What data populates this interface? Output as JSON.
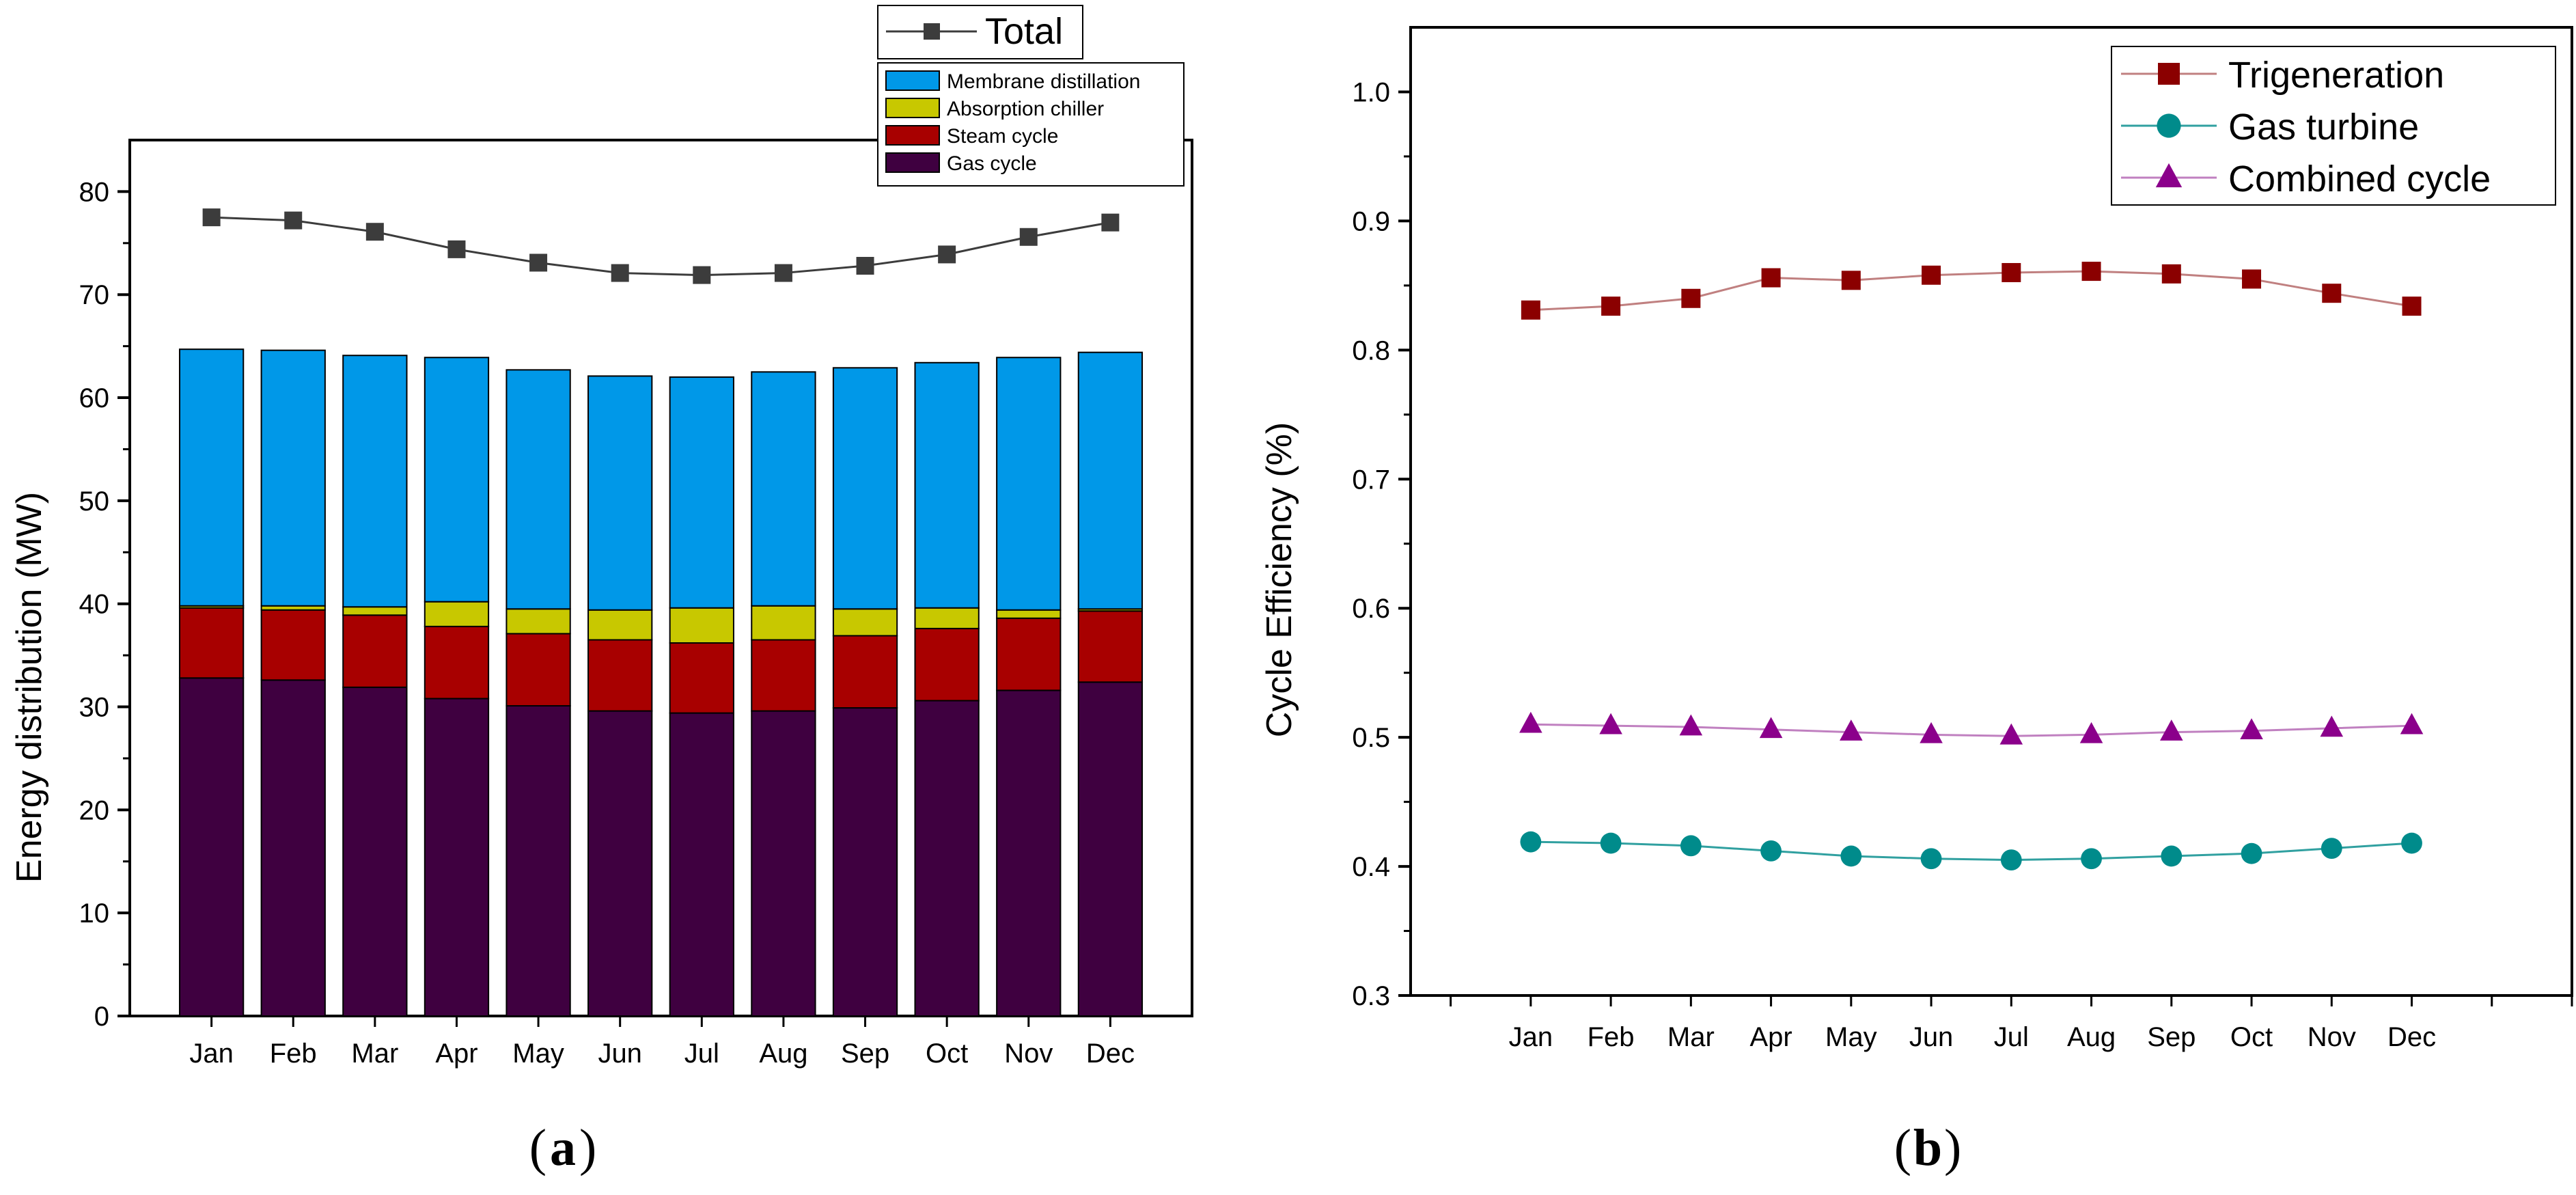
{
  "chart_data": [
    {
      "type": "bar",
      "stacked": true,
      "panel_label": "a",
      "categories": [
        "Jan",
        "Feb",
        "Mar",
        "Apr",
        "May",
        "Jun",
        "Jul",
        "Aug",
        "Sep",
        "Oct",
        "Nov",
        "Dec"
      ],
      "xlabel": "",
      "ylabel": "Energy distribution (MW)",
      "ylim": [
        0,
        85
      ],
      "yticks": [
        "0",
        "10",
        "20",
        "30",
        "40",
        "50",
        "60",
        "70",
        "80"
      ],
      "series": [
        {
          "name": "Gas cycle",
          "color": "#3f0040",
          "values": [
            32.8,
            32.6,
            31.9,
            30.8,
            30.1,
            29.6,
            29.4,
            29.6,
            29.9,
            30.6,
            31.6,
            32.4
          ]
        },
        {
          "name": "Steam cycle",
          "color": "#a80000",
          "values": [
            6.8,
            6.8,
            7.0,
            7.0,
            7.0,
            6.9,
            6.8,
            6.9,
            7.0,
            7.0,
            7.0,
            6.9
          ]
        },
        {
          "name": "Absorption chiller",
          "color": "#c8c800",
          "values": [
            0.2,
            0.4,
            0.8,
            2.4,
            2.4,
            2.9,
            3.4,
            3.3,
            2.6,
            2.0,
            0.8,
            0.2
          ]
        },
        {
          "name": "Membrane distillation",
          "color": "#0098e8",
          "values": [
            24.9,
            24.8,
            24.4,
            23.7,
            23.2,
            22.7,
            22.4,
            22.7,
            23.4,
            23.8,
            24.5,
            24.9
          ]
        }
      ],
      "line_series": {
        "name": "Total",
        "color": "#3c3c3c",
        "values": [
          77.5,
          77.2,
          76.1,
          74.4,
          73.1,
          72.1,
          71.9,
          72.1,
          72.8,
          73.9,
          75.6,
          77.0
        ]
      },
      "legend": {
        "line_label": "Total",
        "bar_labels": [
          "Membrane distillation",
          "Absorption chiller",
          "Steam cycle",
          "Gas cycle"
        ]
      }
    },
    {
      "type": "line",
      "panel_label": "b",
      "categories": [
        "Jan",
        "Feb",
        "Mar",
        "Apr",
        "May",
        "Jun",
        "Jul",
        "Aug",
        "Sep",
        "Oct",
        "Nov",
        "Dec"
      ],
      "xlabel": "",
      "ylabel": "Cycle Efficiency (%)",
      "ylim": [
        0.3,
        1.05
      ],
      "yticks": [
        "0.3",
        "0.4",
        "0.5",
        "0.6",
        "0.7",
        "0.8",
        "0.9",
        "1.0"
      ],
      "series": [
        {
          "name": "Trigeneration",
          "color": "#8b0000",
          "line_color": "#c08080",
          "marker": "square",
          "values": [
            0.831,
            0.834,
            0.84,
            0.856,
            0.854,
            0.858,
            0.86,
            0.861,
            0.859,
            0.855,
            0.844,
            0.834
          ]
        },
        {
          "name": "Gas turbine",
          "color": "#008b8b",
          "line_color": "#30a0a0",
          "marker": "circle",
          "values": [
            0.419,
            0.418,
            0.416,
            0.412,
            0.408,
            0.406,
            0.405,
            0.406,
            0.408,
            0.41,
            0.414,
            0.418
          ]
        },
        {
          "name": "Combined cycle",
          "color": "#8b008b",
          "line_color": "#c080c0",
          "marker": "triangle",
          "values": [
            0.51,
            0.509,
            0.508,
            0.506,
            0.504,
            0.502,
            0.501,
            0.502,
            0.504,
            0.505,
            0.507,
            0.509
          ]
        }
      ]
    }
  ]
}
